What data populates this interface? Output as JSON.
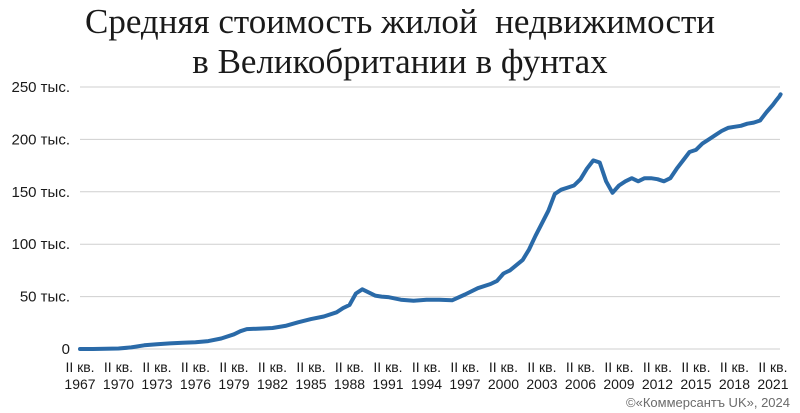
{
  "title_line1": "Средняя стоимость жилой  недвижимости",
  "title_line2": "в Великобритании в фунтах",
  "credit": "©«Коммерсантъ UK», 2024",
  "colors": {
    "line": "#2a6aa8",
    "grid": "#cfcfcf",
    "text": "#1a1a1a"
  },
  "chart_data": {
    "type": "line",
    "title": "Средняя стоимость жилой  недвижимости в Великобритании в фунтах",
    "xlabel": "",
    "ylabel": "",
    "ylim": [
      0,
      250000
    ],
    "y_ticks": [
      {
        "value": 0,
        "label": "0"
      },
      {
        "value": 50000,
        "label": "50 тыс."
      },
      {
        "value": 100000,
        "label": "100 тыс."
      },
      {
        "value": 150000,
        "label": "150 тыс."
      },
      {
        "value": 200000,
        "label": "200 тыс."
      },
      {
        "value": 250000,
        "label": "250 тыс."
      }
    ],
    "x_ticks": [
      {
        "year": 1967,
        "line1": "II кв.",
        "line2": "1967"
      },
      {
        "year": 1970,
        "line1": "II кв.",
        "line2": "1970"
      },
      {
        "year": 1973,
        "line1": "II кв.",
        "line2": "1973"
      },
      {
        "year": 1976,
        "line1": "II кв.",
        "line2": "1976"
      },
      {
        "year": 1979,
        "line1": "II кв.",
        "line2": "1979"
      },
      {
        "year": 1982,
        "line1": "II кв.",
        "line2": "1982"
      },
      {
        "year": 1985,
        "line1": "II кв.",
        "line2": "1985"
      },
      {
        "year": 1988,
        "line1": "II кв.",
        "line2": "1988"
      },
      {
        "year": 1991,
        "line1": "II кв.",
        "line2": "1991"
      },
      {
        "year": 1994,
        "line1": "II кв.",
        "line2": "1994"
      },
      {
        "year": 1997,
        "line1": "II кв.",
        "line2": "1997"
      },
      {
        "year": 2000,
        "line1": "II кв.",
        "line2": "2000"
      },
      {
        "year": 2003,
        "line1": "II кв.",
        "line2": "2003"
      },
      {
        "year": 2006,
        "line1": "II кв.",
        "line2": "2006"
      },
      {
        "year": 2009,
        "line1": "II кв.",
        "line2": "2009"
      },
      {
        "year": 2012,
        "line1": "II кв.",
        "line2": "2012"
      },
      {
        "year": 2015,
        "line1": "II кв.",
        "line2": "2015"
      },
      {
        "year": 2018,
        "line1": "II кв.",
        "line2": "2018"
      },
      {
        "year": 2021,
        "line1": "II кв.",
        "line2": "2021"
      }
    ],
    "series": [
      {
        "x": [
          1967,
          1968,
          1969,
          1970,
          1971,
          1972,
          1973,
          1974,
          1975,
          1976,
          1977,
          1978,
          1979,
          1979.5,
          1980,
          1981,
          1982,
          1983,
          1984,
          1985,
          1986,
          1987,
          1987.5,
          1988,
          1988.5,
          1989,
          1989.5,
          1990,
          1990.5,
          1991,
          1992,
          1993,
          1994,
          1995,
          1996,
          1997,
          1998,
          1999,
          1999.5,
          2000,
          2000.5,
          2001,
          2001.5,
          2002,
          2002.5,
          2003,
          2003.5,
          2004,
          2004.5,
          2005,
          2005.5,
          2006,
          2006.5,
          2007,
          2007.5,
          2008,
          2008.5,
          2009,
          2009.5,
          2010,
          2010.5,
          2011,
          2011.5,
          2012,
          2012.5,
          2013,
          2013.5,
          2014,
          2014.5,
          2015,
          2015.5,
          2016,
          2016.5,
          2017,
          2017.5,
          2018,
          2018.5,
          2019,
          2019.5,
          2020,
          2020.5,
          2021,
          2021.3,
          2021.5,
          2021.6
        ],
        "y": [
          0,
          0,
          300,
          500,
          1500,
          3500,
          4500,
          5300,
          6000,
          6500,
          7500,
          10000,
          14000,
          17000,
          19000,
          19500,
          20000,
          22000,
          25500,
          28500,
          31000,
          35000,
          39000,
          42000,
          53000,
          57000,
          54000,
          51000,
          50000,
          49500,
          47000,
          46000,
          47000,
          47000,
          46500,
          52000,
          58000,
          62000,
          65000,
          72000,
          75000,
          80000,
          85000,
          95000,
          108000,
          120000,
          132000,
          148000,
          152000,
          154000,
          156000,
          162000,
          172000,
          180000,
          178000,
          160000,
          149000,
          156000,
          160000,
          163000,
          160000,
          163000,
          163000,
          162000,
          160000,
          163000,
          172000,
          180000,
          188000,
          190000,
          196000,
          200000,
          204000,
          208000,
          211000,
          212000,
          213000,
          215000,
          216000,
          218000,
          226000,
          233000,
          238000,
          241000,
          243000
        ]
      }
    ]
  }
}
